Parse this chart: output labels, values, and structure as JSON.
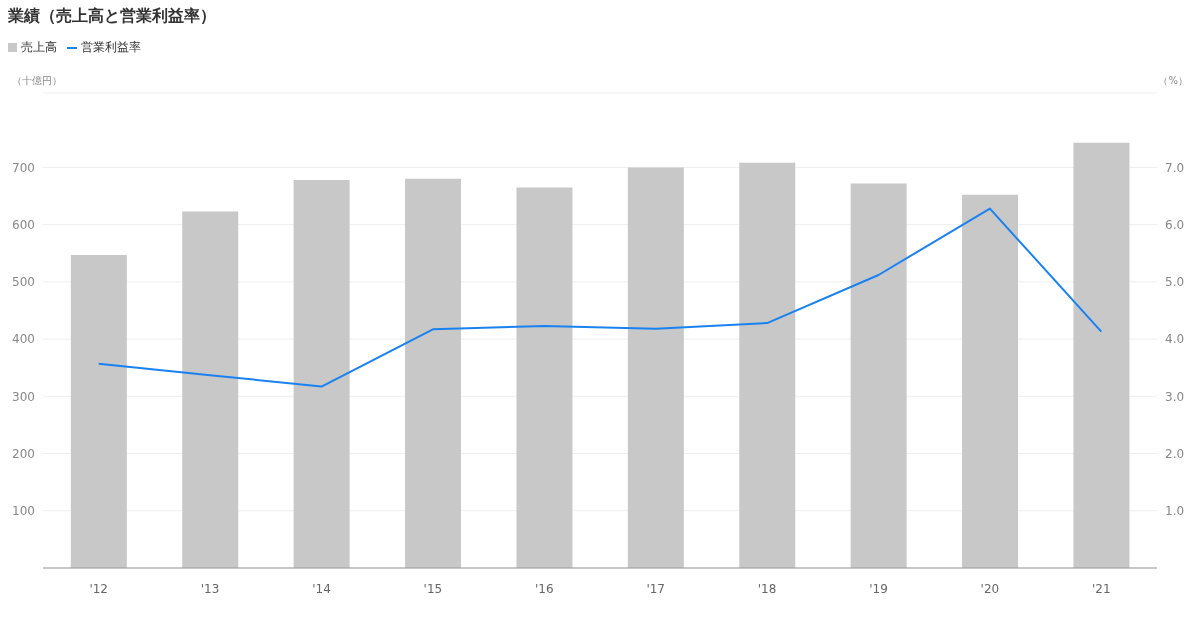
{
  "chart_data": {
    "type": "bar",
    "title": "業績（売上高と営業利益率）",
    "ylabel": "（十億円）",
    "y2label": "（%）",
    "categories": [
      "'12",
      "'13",
      "'14",
      "'15",
      "'16",
      "'17",
      "'18",
      "'19",
      "'20",
      "'21"
    ],
    "series": [
      {
        "name": "売上高",
        "color": "#c8c8c8",
        "values": [
          547,
          623,
          678,
          680,
          665,
          700,
          708,
          672,
          652,
          743
        ]
      },
      {
        "name": "営業利益率",
        "type": "line",
        "axis": "y2",
        "color": "#1a82f0",
        "values": [
          3.57,
          3.37,
          3.17,
          4.17,
          4.23,
          4.18,
          4.28,
          5.12,
          6.28,
          4.13
        ]
      }
    ],
    "ylim": [
      0,
      830
    ],
    "yticks": [
      100,
      200,
      300,
      400,
      500,
      600,
      700
    ],
    "y2lim": [
      0,
      8.3
    ],
    "y2ticks": [
      {
        "value": 1,
        "label": "1.0"
      },
      {
        "value": 2,
        "label": "2.0"
      },
      {
        "value": 3,
        "label": "3.0"
      },
      {
        "value": 4,
        "label": "4.0"
      },
      {
        "value": 5,
        "label": "5.0"
      },
      {
        "value": 6,
        "label": "6.0"
      },
      {
        "value": 7,
        "label": "7.0"
      }
    ],
    "grid": "y",
    "legend": "top left",
    "marker": "none",
    "line_style": "solid"
  }
}
